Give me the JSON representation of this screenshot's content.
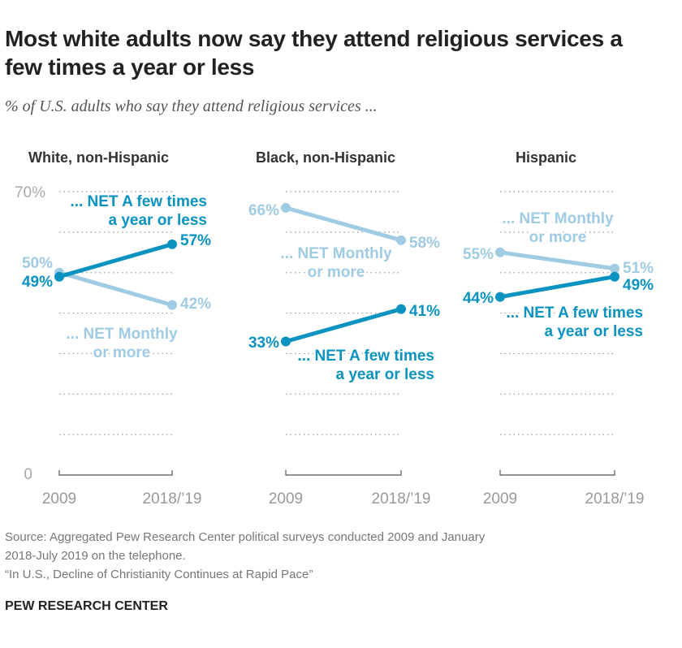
{
  "title": "Most white adults now say they attend religious services a few times a year or less",
  "subtitle": "% of U.S. adults who say they attend religious services ...",
  "source": [
    "Source: Aggregated Pew Research Center political surveys conducted 2009 and January",
    "2018-July 2019 on the telephone."
  ],
  "report": "“In U.S., Decline of Christianity Continues at Rapid Pace”",
  "brand": "PEW RESEARCH CENTER",
  "colors": {
    "few_times": "#0a93c0",
    "monthly": "#9fcbe3"
  },
  "chart_data": [
    {
      "type": "line",
      "title": "White, non-Hispanic",
      "categories": [
        "2009",
        "2018/’19"
      ],
      "ylim": [
        0,
        70
      ],
      "yticks": [
        "0",
        "70%"
      ],
      "grid": true,
      "series": [
        {
          "name": "... NET A few times a year or less",
          "values": [
            49,
            57
          ],
          "labels": [
            "49%",
            "57%"
          ]
        },
        {
          "name": "... NET Monthly or more",
          "values": [
            50,
            42
          ],
          "labels": [
            "50%",
            "42%"
          ]
        }
      ]
    },
    {
      "type": "line",
      "title": "Black, non-Hispanic",
      "categories": [
        "2009",
        "2018/’19"
      ],
      "ylim": [
        0,
        70
      ],
      "grid": true,
      "series": [
        {
          "name": "... NET A few times a year or less",
          "values": [
            33,
            41
          ],
          "labels": [
            "33%",
            "41%"
          ]
        },
        {
          "name": "... NET Monthly or more",
          "values": [
            66,
            58
          ],
          "labels": [
            "66%",
            "58%"
          ]
        }
      ]
    },
    {
      "type": "line",
      "title": "Hispanic",
      "categories": [
        "2009",
        "2018/’19"
      ],
      "ylim": [
        0,
        70
      ],
      "grid": true,
      "series": [
        {
          "name": "... NET A few times a year or less",
          "values": [
            44,
            49
          ],
          "labels": [
            "44%",
            "49%"
          ]
        },
        {
          "name": "... NET Monthly or more",
          "values": [
            55,
            51
          ],
          "labels": [
            "55%",
            "51%"
          ]
        }
      ]
    }
  ]
}
